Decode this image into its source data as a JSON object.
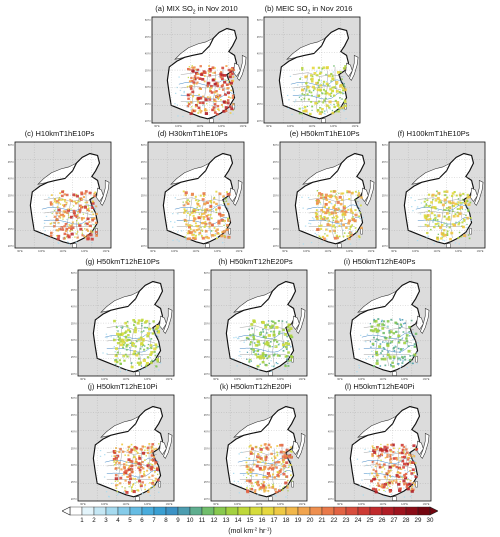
{
  "panels": [
    {
      "title_prefix": "(a) MIX SO",
      "title_sub": "2",
      "title_suffix": " in Nov 2010",
      "intensity": 0.9
    },
    {
      "title_prefix": "(b) MEIC SO",
      "title_sub": "2",
      "title_suffix": " in Nov 2016",
      "intensity": 0.55
    },
    {
      "title": "(c) H10kmT1hE10Ps",
      "intensity": 0.85
    },
    {
      "title": "(d) H30kmT1hE10Ps",
      "intensity": 0.75
    },
    {
      "title": "(e) H50kmT1hE10Ps",
      "intensity": 0.7
    },
    {
      "title": "(f) H100kmT1hE10Ps",
      "intensity": 0.6
    },
    {
      "title": "(g) H50kmT12hE10Ps",
      "intensity": 0.5
    },
    {
      "title": "(h) H50kmT12hE20Ps",
      "intensity": 0.45
    },
    {
      "title": "(i) H50kmT12hE40Ps",
      "intensity": 0.4
    },
    {
      "title": "(j) H50kmT12hE10Pi",
      "intensity": 0.85
    },
    {
      "title": "(k) H50kmT12hE20Pi",
      "intensity": 0.8
    },
    {
      "title": "(l) H50kmT12hE40Pi",
      "intensity": 0.9
    }
  ],
  "map": {
    "lat_ticks": [
      "50°N",
      "45°N",
      "40°N",
      "35°N",
      "30°N",
      "25°N",
      "20°N"
    ],
    "lon_ticks": [
      "90°E",
      "100°E",
      "110°E",
      "120°E",
      "130°E"
    ]
  },
  "colorbar": {
    "labels": [
      "1",
      "2",
      "3",
      "4",
      "5",
      "6",
      "7",
      "8",
      "9",
      "10",
      "11",
      "12",
      "13",
      "14",
      "15",
      "16",
      "17",
      "18",
      "19",
      "20",
      "21",
      "22",
      "23",
      "24",
      "25",
      "26",
      "27",
      "28",
      "29",
      "30"
    ],
    "units_prefix": "(mol km",
    "units_sup1": "-2",
    "units_mid": " hr",
    "units_sup2": "-1",
    "units_suffix": ")",
    "colors": [
      "#ffffff",
      "#e3f4fb",
      "#c5e7f4",
      "#a6daef",
      "#85cbe9",
      "#66bce3",
      "#49acdc",
      "#3a9fd2",
      "#3c92c5",
      "#4d9db0",
      "#5fae8f",
      "#71be6c",
      "#88c94f",
      "#a3d140",
      "#bfd83a",
      "#d6dc3c",
      "#e6d83f",
      "#eec944",
      "#f2b74a",
      "#f1a44e",
      "#ee8f4f",
      "#e9794a",
      "#e26344",
      "#d84e3d",
      "#cd3b35",
      "#c02a2c",
      "#b01d25",
      "#9e141e",
      "#8a0c17",
      "#730510"
    ]
  }
}
